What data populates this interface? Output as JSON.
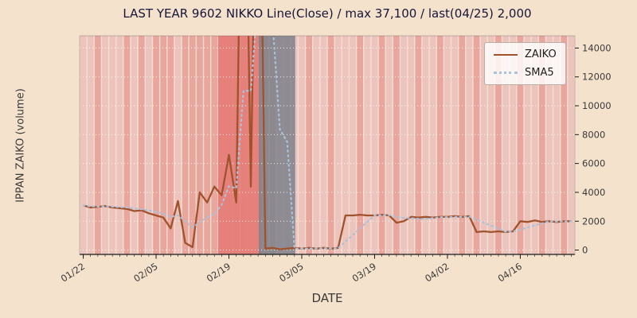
{
  "chart_data": {
    "type": "line",
    "title": "LAST YEAR 9602 NIKKO Line(Close) / max 37,100 / last(04/25) 2,000",
    "xlabel": "DATE",
    "ylabel": "IPPAN ZAIKO (volume)",
    "x_tick_labels": [
      "01/22",
      "02/05",
      "02/19",
      "03/05",
      "03/19",
      "04/02",
      "04/16"
    ],
    "x_tick_indices": [
      0,
      10,
      20,
      30,
      40,
      50,
      60
    ],
    "y_ticks": [
      0,
      2000,
      4000,
      6000,
      8000,
      10000,
      12000,
      14000
    ],
    "ylim": [
      -300,
      14850
    ],
    "grid": "horizontal white dotted",
    "legend_position": "upper right",
    "max_annotation": 37100,
    "last_annotation": {
      "date": "04/25",
      "value": 2000
    },
    "series": [
      {
        "name": "ZAIKO",
        "style": "solid",
        "color": "#a0522d",
        "values": [
          3100,
          2950,
          3000,
          3050,
          2950,
          2900,
          2850,
          2700,
          2750,
          2550,
          2400,
          2250,
          1500,
          3400,
          500,
          200,
          4000,
          3300,
          4400,
          3800,
          6600,
          3300,
          37100,
          4400,
          37100,
          100,
          150,
          50,
          100,
          150,
          100,
          150,
          100,
          150,
          100,
          150,
          2400,
          2400,
          2450,
          2400,
          2400,
          2450,
          2400,
          1900,
          2000,
          2300,
          2250,
          2300,
          2250,
          2300,
          2300,
          2350,
          2300,
          2350,
          1250,
          1300,
          1250,
          1300,
          1250,
          1300,
          2000,
          1950,
          2050,
          1950,
          2000,
          1950,
          2000,
          2000
        ]
      },
      {
        "name": "SMA5",
        "style": "dotted",
        "color": "#aac2dc",
        "window": 5,
        "derived_from": "ZAIKO",
        "values": [
          3100,
          3025,
          3017,
          3025,
          3010,
          2970,
          2950,
          2890,
          2830,
          2750,
          2650,
          2530,
          2290,
          2420,
          2010,
          1570,
          1920,
          2280,
          2480,
          3140,
          4420,
          4280,
          11040,
          11040,
          17700,
          16400,
          15770,
          8360,
          7500,
          110,
          110,
          110,
          120,
          130,
          120,
          130,
          580,
          1040,
          1500,
          1960,
          2410,
          2420,
          2420,
          2310,
          2230,
          2210,
          2170,
          2150,
          2220,
          2280,
          2280,
          2300,
          2300,
          2320,
          2110,
          1910,
          1690,
          1490,
          1270,
          1280,
          1420,
          1560,
          1710,
          1850,
          1990,
          1980,
          1990,
          1980
        ]
      }
    ],
    "background_bands": {
      "description": "per-day translucent red vertical stripes of varying intensity plus one gray band",
      "day_intensity": [
        1,
        1,
        2,
        1,
        1,
        1,
        2,
        1,
        2,
        1,
        2,
        2,
        2,
        1,
        2,
        2,
        2,
        2,
        2,
        3,
        3,
        3,
        3,
        3,
        3,
        2,
        2,
        1,
        1,
        1,
        1,
        2,
        1,
        1,
        2,
        1,
        1,
        1,
        2,
        1,
        1,
        2,
        1,
        2,
        1,
        1,
        2,
        1,
        1,
        2,
        1,
        1,
        2,
        1,
        2,
        1,
        1,
        2,
        1,
        1,
        2,
        1,
        1,
        2,
        1,
        1,
        2,
        1
      ],
      "intensity_colors": {
        "1": "rgba(225,150,140,0.35)",
        "2": "rgba(222,120,110,0.55)",
        "3": "rgba(224,92,86,0.72)"
      },
      "gray_band": {
        "start_index": 24.6,
        "end_index": 29.6,
        "color": "rgba(124,130,139,0.85)"
      }
    },
    "colors": {
      "figure_bg": "#f5e2cc",
      "plot_bg": "#f3ded6",
      "axis_text": "#3a3a3a",
      "title_text": "#16163a",
      "grid": "#ffffff"
    }
  }
}
